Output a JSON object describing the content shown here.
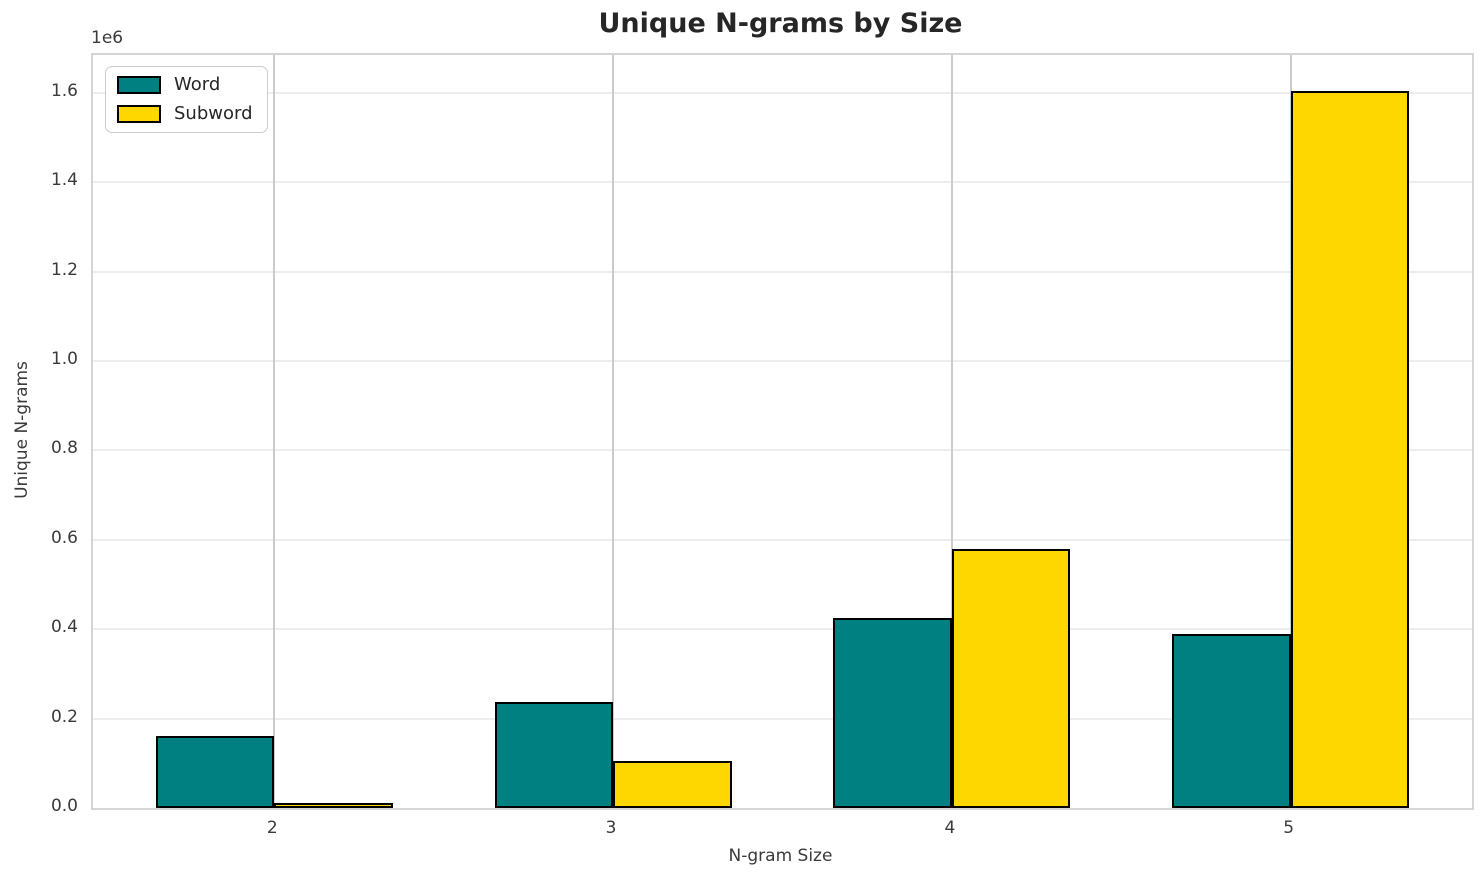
{
  "chart_data": {
    "type": "bar",
    "title": "Unique N-grams by Size",
    "xlabel": "N-gram Size",
    "ylabel": "Unique N-grams",
    "y_offset_text": "1e6",
    "categories": [
      "2",
      "3",
      "4",
      "5"
    ],
    "series": [
      {
        "name": "Word",
        "color": "#008080",
        "values": [
          160000,
          238000,
          425000,
          389000
        ]
      },
      {
        "name": "Subword",
        "color": "#FFD700",
        "values": [
          12000,
          105000,
          580000,
          1605000
        ]
      }
    ],
    "bar_edge_color": "#000000",
    "bar_width_data_units": 0.35,
    "xlim": [
      1.465,
      5.535
    ],
    "ylim": [
      0,
      1685000
    ],
    "yticks": [
      0,
      200000,
      400000,
      600000,
      800000,
      1000000,
      1200000,
      1400000,
      1600000
    ],
    "ytick_labels": [
      "0.0",
      "0.2",
      "0.4",
      "0.6",
      "0.8",
      "1.0",
      "1.2",
      "1.4",
      "1.6"
    ],
    "grid": true,
    "legend_position": "upper left",
    "style": {
      "grid_h_color": "#ededed",
      "grid_v_color": "#cbcbcb",
      "spine_color": "#d5d5d5",
      "title_color": "#262626",
      "tick_color": "#3a3a3a",
      "background": "#ffffff"
    }
  }
}
